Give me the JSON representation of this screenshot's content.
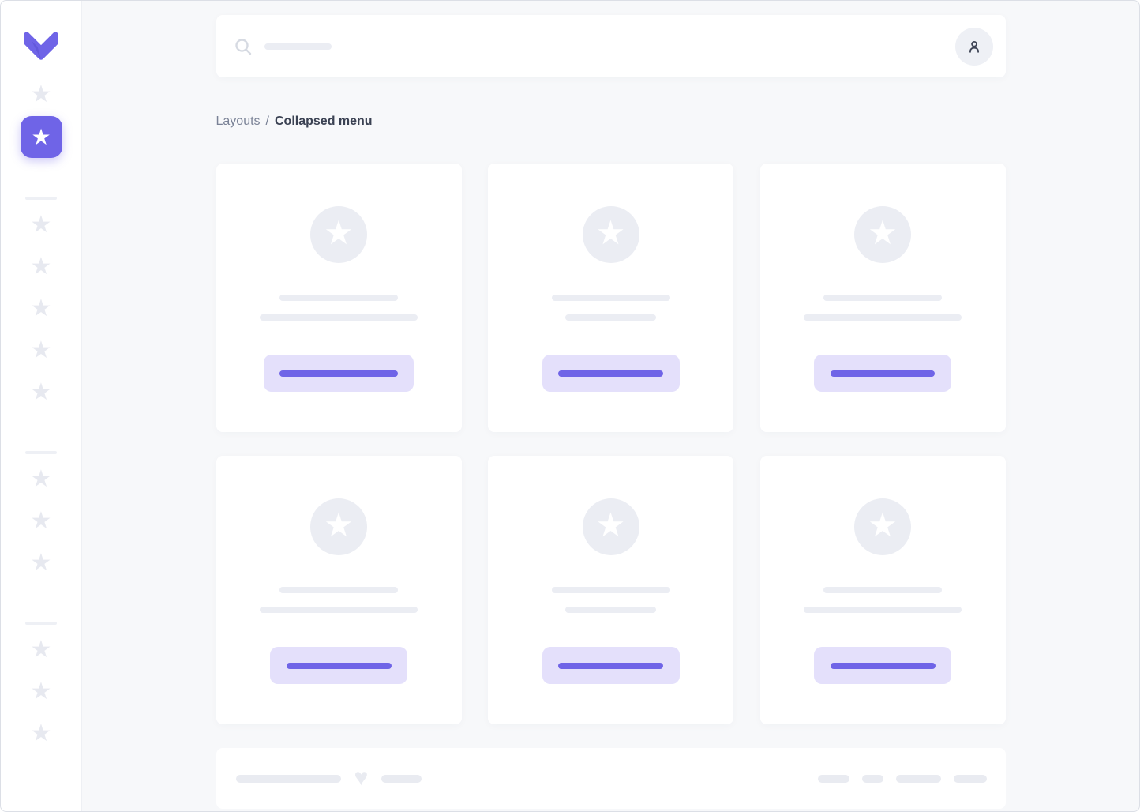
{
  "colors": {
    "accent": "#6f64e7",
    "accent_soft": "#e4e0fb",
    "accent_deep": "#5a4fd2",
    "page_bg": "#f7f8fa",
    "surface": "#ffffff",
    "skeleton": "#ebedf3",
    "skeleton_soft": "#eef0f5",
    "icon_muted": "#e7e9f0",
    "search_icon": "#d6dae2",
    "pill": "#e9ebf1",
    "text_muted": "#7a8296",
    "text_strong": "#3b4253",
    "border": "#dcdfe6"
  },
  "icons": {
    "star": "★",
    "heart": "♥",
    "search": "magnifier-icon",
    "user": "person-icon",
    "logo": "v-chevron-logo"
  },
  "topbar": {
    "search_placeholder": "",
    "search_skeleton_width": 85
  },
  "breadcrumb": {
    "parent": "Layouts",
    "separator": "/",
    "current": "Collapsed menu"
  },
  "sidebar": {
    "items_top": [
      {
        "active": false
      },
      {
        "active": true
      }
    ],
    "groups": [
      {
        "count": 5
      },
      {
        "count": 3
      },
      {
        "count": 3
      }
    ]
  },
  "cards": [
    {
      "line1_width": 150,
      "line2_width": 200,
      "button_width": 190,
      "button_bar_width": 150
    },
    {
      "line1_width": 150,
      "line2_width": 115,
      "button_width": 174,
      "button_bar_width": 133
    },
    {
      "line1_width": 150,
      "line2_width": 200,
      "button_width": 174,
      "button_bar_width": 132
    },
    {
      "line1_width": 150,
      "line2_width": 200,
      "button_width": 174,
      "button_bar_width": 133
    },
    {
      "line1_width": 150,
      "line2_width": 115,
      "button_width": 174,
      "button_bar_width": 133
    },
    {
      "line1_width": 150,
      "line2_width": 200,
      "button_width": 174,
      "button_bar_width": 133
    }
  ],
  "footer": {
    "left_pills": [
      133,
      51
    ],
    "right_pills": [
      40,
      27,
      57,
      42
    ]
  }
}
